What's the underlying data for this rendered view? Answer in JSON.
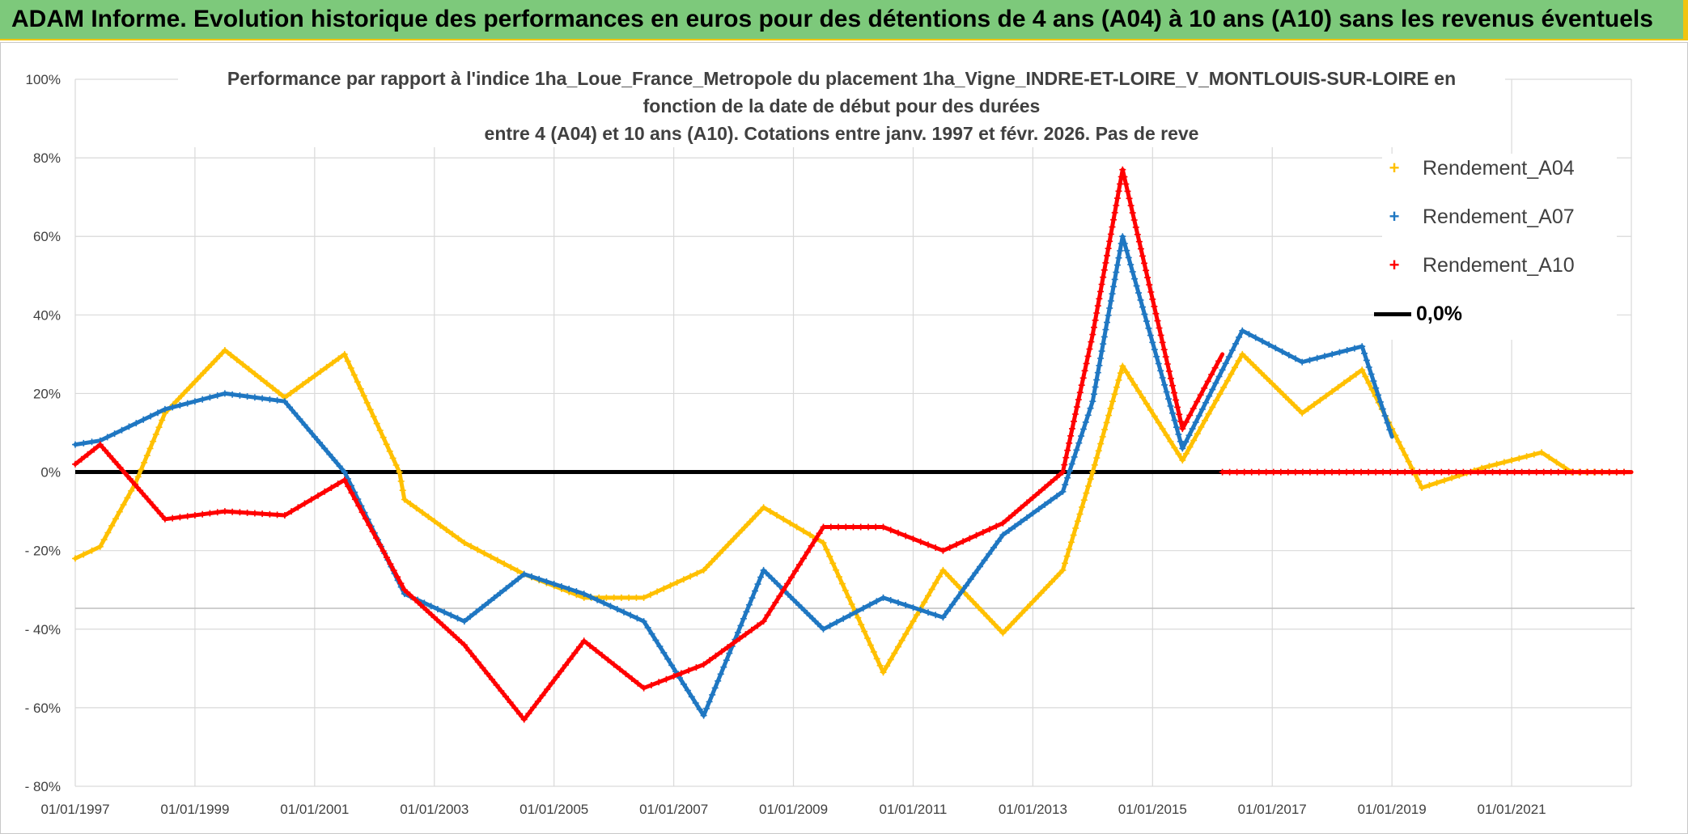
{
  "banner": {
    "title": "ADAM Informe. Evolution historique des performances en euros pour des détentions de 4 ans (A04) à 10 ans (A10) sans les revenus éventuels"
  },
  "chart_data": {
    "type": "line",
    "title_lines": [
      "Performance par rapport à l'indice 1ha_Loue_France_Metropole  du placement 1ha_Vigne_INDRE-ET-LOIRE_V_MONTLOUIS-SUR-LOIRE en",
      "fonction de la date de début pour des durées",
      "entre 4 (A04) et 10 ans (A10). Cotations entre janv. 1997 et févr. 2026. Pas de reve"
    ],
    "xlabel": "",
    "ylabel": "",
    "x_ticks": [
      "01/01/1997",
      "01/01/1999",
      "01/01/2001",
      "01/01/2003",
      "01/01/2005",
      "01/01/2007",
      "01/01/2009",
      "01/01/2011",
      "01/01/2013",
      "01/01/2015",
      "01/01/2017",
      "01/01/2019",
      "01/01/2021"
    ],
    "y_ticks": [
      "100%",
      "80%",
      "60%",
      "40%",
      "20%",
      "0%",
      "- 20%",
      "- 40%",
      "- 60%",
      "- 80%"
    ],
    "xlim": [
      "1997-01-01",
      "2023-01-01"
    ],
    "ylim": [
      -80,
      100
    ],
    "grid": true,
    "legend_position": "top-right",
    "colors": {
      "A04": "#ffc000",
      "A07": "#1f77c2",
      "A10": "#ff0000",
      "zero": "#000000"
    },
    "series": [
      {
        "name": "Rendement_A04",
        "marker": "+",
        "points": [
          [
            "1997-01-01",
            -22
          ],
          [
            "1997-06-01",
            -19
          ],
          [
            "1998-01-01",
            -3
          ],
          [
            "1998-07-01",
            15
          ],
          [
            "1999-07-01",
            31
          ],
          [
            "2000-07-01",
            19
          ],
          [
            "2001-07-01",
            30
          ],
          [
            "2002-06-01",
            0
          ],
          [
            "2002-07-01",
            -7
          ],
          [
            "2003-07-01",
            -18
          ],
          [
            "2004-07-01",
            -26
          ],
          [
            "2005-07-01",
            -32
          ],
          [
            "2006-07-01",
            -32
          ],
          [
            "2007-07-01",
            -25
          ],
          [
            "2008-07-01",
            -9
          ],
          [
            "2009-07-01",
            -18
          ],
          [
            "2010-07-01",
            -51
          ],
          [
            "2011-07-01",
            -25
          ],
          [
            "2012-07-01",
            -41
          ],
          [
            "2013-07-01",
            -25
          ],
          [
            "2014-01-01",
            0
          ],
          [
            "2014-07-01",
            27
          ],
          [
            "2015-07-01",
            3
          ],
          [
            "2016-07-01",
            30
          ],
          [
            "2017-07-01",
            15
          ],
          [
            "2018-07-01",
            26
          ],
          [
            "2019-07-01",
            -4
          ],
          [
            "2020-07-01",
            1
          ],
          [
            "2021-07-01",
            5
          ],
          [
            "2022-01-01",
            0
          ],
          [
            "2023-01-01",
            0
          ]
        ]
      },
      {
        "name": "Rendement_A07",
        "marker": "+",
        "points": [
          [
            "1997-01-01",
            7
          ],
          [
            "1997-06-01",
            8
          ],
          [
            "1998-07-01",
            16
          ],
          [
            "1999-07-01",
            20
          ],
          [
            "2000-07-01",
            18
          ],
          [
            "2001-07-01",
            0
          ],
          [
            "2002-07-01",
            -31
          ],
          [
            "2003-07-01",
            -38
          ],
          [
            "2004-07-01",
            -26
          ],
          [
            "2005-07-01",
            -31
          ],
          [
            "2006-07-01",
            -38
          ],
          [
            "2007-07-01",
            -62
          ],
          [
            "2008-07-01",
            -25
          ],
          [
            "2009-07-01",
            -40
          ],
          [
            "2010-07-01",
            -32
          ],
          [
            "2011-07-01",
            -37
          ],
          [
            "2012-07-01",
            -16
          ],
          [
            "2013-07-01",
            -5
          ],
          [
            "2014-01-01",
            18
          ],
          [
            "2014-07-01",
            60
          ],
          [
            "2015-07-01",
            6
          ],
          [
            "2016-07-01",
            36
          ],
          [
            "2017-07-01",
            28
          ],
          [
            "2018-07-01",
            32
          ],
          [
            "2019-01-01",
            9
          ]
        ]
      },
      {
        "name": "Rendement_A10",
        "marker": "+",
        "points": [
          [
            "1997-01-01",
            2
          ],
          [
            "1997-06-01",
            7
          ],
          [
            "1998-07-01",
            -12
          ],
          [
            "1999-07-01",
            -10
          ],
          [
            "2000-07-01",
            -11
          ],
          [
            "2001-07-01",
            -2
          ],
          [
            "2002-07-01",
            -30
          ],
          [
            "2003-07-01",
            -44
          ],
          [
            "2004-07-01",
            -63
          ],
          [
            "2005-07-01",
            -43
          ],
          [
            "2006-07-01",
            -55
          ],
          [
            "2007-07-01",
            -49
          ],
          [
            "2008-07-01",
            -38
          ],
          [
            "2009-07-01",
            -14
          ],
          [
            "2010-07-01",
            -14
          ],
          [
            "2011-07-01",
            -20
          ],
          [
            "2012-07-01",
            -13
          ],
          [
            "2013-07-01",
            0
          ],
          [
            "2014-01-01",
            35
          ],
          [
            "2014-07-01",
            77
          ],
          [
            "2015-07-01",
            11
          ],
          [
            "2016-03-01",
            30
          ]
        ],
        "flat_zero_range": [
          "2016-03-01",
          "2023-01-01"
        ]
      },
      {
        "name": "0,0%",
        "marker": "line",
        "points": [
          [
            "1997-01-01",
            0
          ],
          [
            "2023-01-01",
            0
          ]
        ]
      }
    ]
  }
}
